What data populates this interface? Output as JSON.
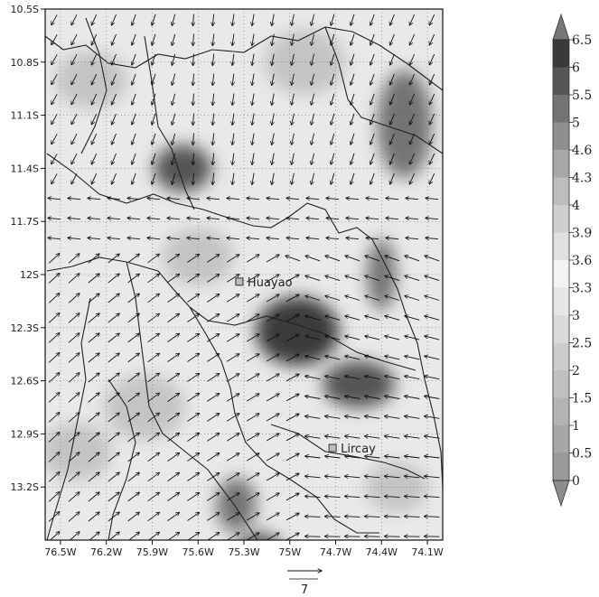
{
  "map": {
    "lon_range": [
      -76.6,
      -74.0
    ],
    "lat_range": [
      -13.5,
      -10.5
    ],
    "x_ticks": [
      "76.5W",
      "76.2W",
      "75.9W",
      "75.6W",
      "75.3W",
      "75W",
      "74.7W",
      "74.4W",
      "74.1W"
    ],
    "x_tick_values": [
      -76.5,
      -76.2,
      -75.9,
      -75.6,
      -75.3,
      -75.0,
      -74.7,
      -74.4,
      -74.1
    ],
    "y_ticks": [
      "10.5S",
      "10.8S",
      "11.1S",
      "11.4S",
      "11.7S",
      "12S",
      "12.3S",
      "12.6S",
      "12.9S",
      "13.2S"
    ],
    "y_tick_values": [
      -10.5,
      -10.8,
      -11.1,
      -11.4,
      -11.7,
      -12.0,
      -12.3,
      -12.6,
      -12.9,
      -13.2
    ],
    "grid": true,
    "cities": [
      {
        "name": "Huayao",
        "lon": -75.33,
        "lat": -12.04
      },
      {
        "name": "Lircay",
        "lon": -74.72,
        "lat": -12.98
      }
    ]
  },
  "wind": {
    "reference_vector_label": "7",
    "reference_speed": 7
  },
  "colorbar": {
    "labels": [
      "0",
      "0.5",
      "1",
      "1.5",
      "2",
      "2.5",
      "3",
      "3.3",
      "3.6",
      "3.9",
      "4",
      "4.3",
      "4.6",
      "5",
      "5.5",
      "6",
      "6.5"
    ],
    "colors": [
      "#8c8c8c",
      "#999999",
      "#a6a6a6",
      "#b3b3b3",
      "#c0c0c0",
      "#cdcdcd",
      "#dadada",
      "#e6e6e6",
      "#f3f3f3",
      "#e0e0e0",
      "#cfcfcf",
      "#bdbdbd",
      "#a8a8a8",
      "#8f8f8f",
      "#737373",
      "#555555",
      "#3a3a3a",
      "#2a2a2a"
    ],
    "extend": "both"
  },
  "chart_data": {
    "type": "heatmap",
    "title": "",
    "xlabel": "",
    "ylabel": "",
    "xlim": [
      -76.6,
      -74.0
    ],
    "ylim": [
      -13.5,
      -10.5
    ],
    "value_levels": [
      0,
      0.5,
      1,
      1.5,
      2,
      2.5,
      3,
      3.3,
      3.6,
      3.9,
      4,
      4.3,
      4.6,
      5,
      5.5,
      6,
      6.5
    ],
    "dark_regions": [
      {
        "lon": -74.95,
        "lat": -12.32,
        "value": 6.0
      },
      {
        "lon": -74.55,
        "lat": -12.62,
        "value": 5.5
      },
      {
        "lon": -74.25,
        "lat": -11.15,
        "value": 5.0
      },
      {
        "lon": -75.7,
        "lat": -11.4,
        "value": 5.5
      },
      {
        "lon": -75.35,
        "lat": -13.3,
        "value": 5.0
      },
      {
        "lon": -75.2,
        "lat": -13.55,
        "value": 5.5
      },
      {
        "lon": -74.4,
        "lat": -12.0,
        "value": 5.0
      }
    ]
  }
}
